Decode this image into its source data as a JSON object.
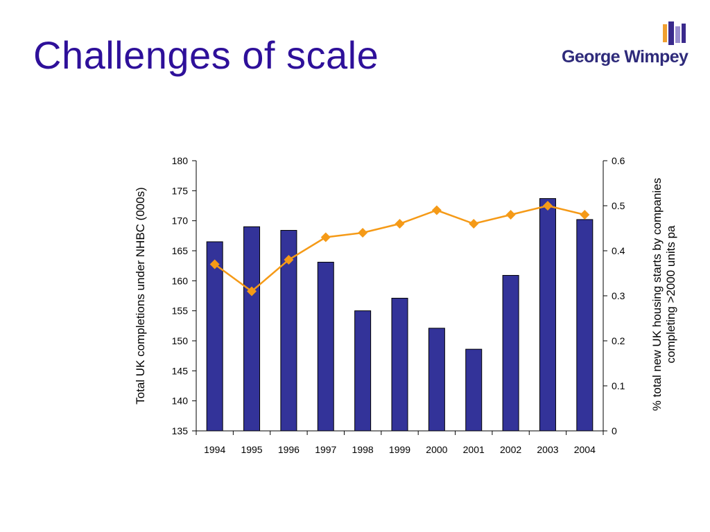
{
  "slide": {
    "title": "Challenges of scale"
  },
  "logo": {
    "text": "George Wimpey",
    "colors": {
      "orange": "#f0a030",
      "purple": "#3a2a8c",
      "lavender": "#9a8fd0"
    }
  },
  "colors": {
    "title": "#2e109a",
    "bars": "#333399",
    "line": "#f59a17"
  },
  "chart_data": {
    "type": "bar",
    "categories": [
      "1994",
      "1995",
      "1996",
      "1997",
      "1998",
      "1999",
      "2000",
      "2001",
      "2002",
      "2003",
      "2004"
    ],
    "series": [
      {
        "axis": "left",
        "type": "bar",
        "values": [
          166.5,
          169.0,
          168.4,
          163.1,
          155.0,
          157.1,
          152.1,
          148.6,
          160.9,
          173.7,
          170.2
        ]
      },
      {
        "axis": "right",
        "type": "line",
        "marker": "diamond",
        "values": [
          0.37,
          0.31,
          0.38,
          0.43,
          0.44,
          0.46,
          0.49,
          0.46,
          0.48,
          0.5,
          0.48
        ]
      }
    ],
    "ylabel": "Total UK completions under NHBC (000s)",
    "y2label": "% total new UK housing starts by companies completing >2000 units pa",
    "y2label_lines": [
      "% total new UK housing starts by companies",
      "completing >2000 units pa"
    ],
    "ylim": [
      135,
      180
    ],
    "y_ticks": [
      "135",
      "140",
      "145",
      "150",
      "155",
      "160",
      "165",
      "170",
      "175",
      "180"
    ],
    "y2lim": [
      0,
      0.6
    ],
    "y2_ticks": [
      "0",
      "0.1",
      "0.2",
      "0.3",
      "0.4",
      "0.5",
      "0.6"
    ],
    "grid": false,
    "legend": "none"
  }
}
